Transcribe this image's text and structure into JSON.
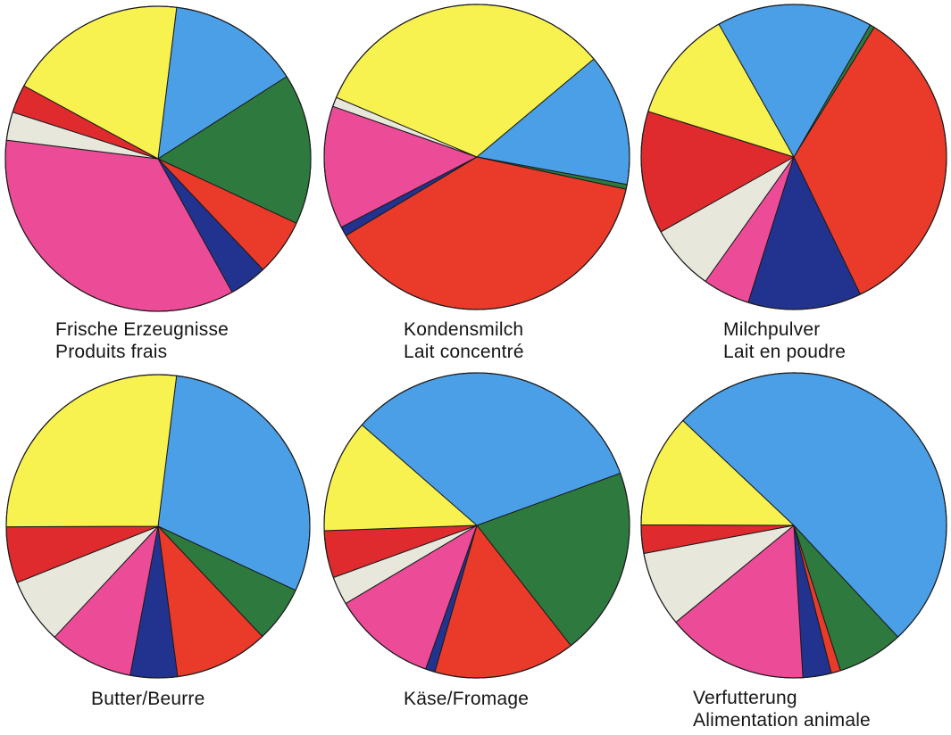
{
  "colors": {
    "yellow": "#f7f250",
    "light_blue": "#4a9fe6",
    "dark_green": "#2e7a3e",
    "orange_red": "#ea3a2a",
    "dark_blue": "#22338f",
    "magenta": "#ec4c97",
    "light_gray": "#e8e7dc",
    "red": "#df2a2e"
  },
  "chart_data": [
    {
      "type": "pie",
      "title": "",
      "caption_lines": [
        "Frische Erzeugnisse",
        "Produits frais"
      ],
      "slices": [
        {
          "color": "light_blue",
          "value": 14
        },
        {
          "color": "dark_green",
          "value": 16
        },
        {
          "color": "orange_red",
          "value": 6
        },
        {
          "color": "dark_blue",
          "value": 4
        },
        {
          "color": "magenta",
          "value": 35
        },
        {
          "color": "light_gray",
          "value": 3
        },
        {
          "color": "red",
          "value": 3
        },
        {
          "color": "yellow",
          "value": 19
        }
      ]
    },
    {
      "type": "pie",
      "title": "",
      "caption_lines": [
        "Kondensmilch",
        "Lait concentré"
      ],
      "slices": [
        {
          "color": "light_blue",
          "value": 14
        },
        {
          "color": "dark_green",
          "value": 0.5
        },
        {
          "color": "orange_red",
          "value": 38
        },
        {
          "color": "dark_blue",
          "value": 1
        },
        {
          "color": "magenta",
          "value": 13
        },
        {
          "color": "light_gray",
          "value": 1
        },
        {
          "color": "yellow",
          "value": 32.5
        }
      ]
    },
    {
      "type": "pie",
      "title": "",
      "caption_lines": [
        "Milchpulver",
        "Lait en poudre"
      ],
      "slices": [
        {
          "color": "dark_green",
          "value": 0.5
        },
        {
          "color": "orange_red",
          "value": 34
        },
        {
          "color": "dark_blue",
          "value": 12
        },
        {
          "color": "magenta",
          "value": 5
        },
        {
          "color": "light_gray",
          "value": 7
        },
        {
          "color": "red",
          "value": 13
        },
        {
          "color": "yellow",
          "value": 12
        },
        {
          "color": "light_blue",
          "value": 16.5
        }
      ]
    },
    {
      "type": "pie",
      "title": "",
      "caption_lines": [
        "Butter/Beurre"
      ],
      "slices": [
        {
          "color": "light_blue",
          "value": 30
        },
        {
          "color": "dark_green",
          "value": 6
        },
        {
          "color": "orange_red",
          "value": 10
        },
        {
          "color": "dark_blue",
          "value": 5
        },
        {
          "color": "magenta",
          "value": 9
        },
        {
          "color": "light_gray",
          "value": 7
        },
        {
          "color": "red",
          "value": 6
        },
        {
          "color": "yellow",
          "value": 27
        }
      ]
    },
    {
      "type": "pie",
      "title": "",
      "caption_lines": [
        "Käse/Fromage"
      ],
      "slices": [
        {
          "color": "dark_green",
          "value": 20
        },
        {
          "color": "orange_red",
          "value": 15
        },
        {
          "color": "dark_blue",
          "value": 1
        },
        {
          "color": "magenta",
          "value": 11
        },
        {
          "color": "light_gray",
          "value": 3
        },
        {
          "color": "red",
          "value": 5
        },
        {
          "color": "yellow",
          "value": 12
        },
        {
          "color": "light_blue",
          "value": 33
        }
      ]
    },
    {
      "type": "pie",
      "title": "",
      "caption_lines": [
        "Verfutterung",
        "Alimentation animale"
      ],
      "slices": [
        {
          "color": "dark_green",
          "value": 7
        },
        {
          "color": "orange_red",
          "value": 1
        },
        {
          "color": "dark_blue",
          "value": 3
        },
        {
          "color": "magenta",
          "value": 15
        },
        {
          "color": "light_gray",
          "value": 8
        },
        {
          "color": "red",
          "value": 3
        },
        {
          "color": "yellow",
          "value": 12
        },
        {
          "color": "light_blue",
          "value": 51
        }
      ]
    }
  ]
}
